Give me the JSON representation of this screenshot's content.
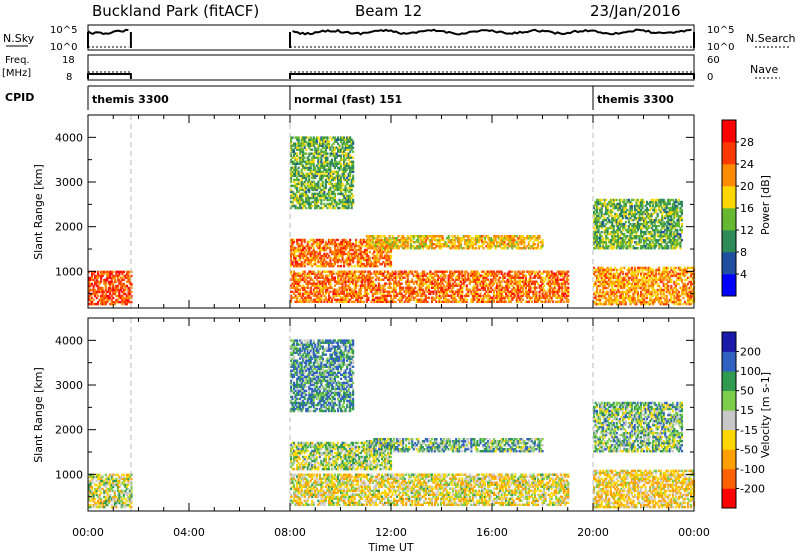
{
  "header": {
    "site": "Buckland Park (fitACF)",
    "beam": "Beam 12",
    "date": "23/Jan/2016"
  },
  "noise_panel": {
    "left_label": "N.Sky",
    "right_label": "N.Search",
    "left_ticks": [
      "10^5",
      "10^0"
    ],
    "right_ticks": [
      "10^5",
      "10^0"
    ]
  },
  "freq_panel": {
    "left_label_1": "Freq.",
    "left_label_2": "[MHz]",
    "left_ticks": [
      "18",
      "8"
    ],
    "right_label": "Nave",
    "right_ticks": [
      "60",
      "0"
    ]
  },
  "cpid_panel": {
    "label": "CPID",
    "segments": [
      {
        "label": "themis 3300",
        "start_hour": 0.0
      },
      {
        "label": "normal (fast) 151",
        "start_hour": 8.0
      },
      {
        "label": "themis 3300",
        "start_hour": 20.0
      }
    ]
  },
  "time_axis": {
    "label": "Time UT",
    "ticks": [
      "00:00",
      "04:00",
      "08:00",
      "12:00",
      "16:00",
      "20:00",
      "00:00"
    ],
    "tick_hours": [
      0,
      4,
      8,
      12,
      16,
      20,
      24
    ]
  },
  "colors": {
    "power_scale": [
      "#0000ff",
      "#1f4fa0",
      "#2e8a57",
      "#66b832",
      "#ffd700",
      "#ff8c00",
      "#ff3a00",
      "#ff0000"
    ],
    "velocity_scale": [
      "#1a1aaa",
      "#3060c0",
      "#2f9a50",
      "#7ccd4a",
      "#c8c8c8",
      "#ffd700",
      "#ffa000",
      "#ff6000",
      "#ff0000"
    ]
  },
  "chart_data": [
    {
      "type": "heatmap",
      "title": "",
      "xlabel": "",
      "ylabel": "Slant Range [km]",
      "xlim": [
        0,
        24
      ],
      "ylim": [
        180,
        4500
      ],
      "yticks": [
        "1000",
        "2000",
        "3000",
        "4000"
      ],
      "ytick_values": [
        1000,
        2000,
        3000,
        4000
      ],
      "colorbar": {
        "label": "Power [dB]",
        "ticks": [
          "4",
          "8",
          "12",
          "16",
          "20",
          "24",
          "28"
        ],
        "range": [
          0,
          30
        ]
      },
      "data_gaps_hours": [
        [
          1.7,
          8.0
        ]
      ],
      "echo_bands": [
        {
          "t0": 0.0,
          "t1": 1.7,
          "r0": 250,
          "r1": 1000,
          "power_db": 24
        },
        {
          "t0": 8.0,
          "t1": 12.0,
          "r0": 1100,
          "r1": 1700,
          "power_db": 22
        },
        {
          "t0": 11.0,
          "t1": 18.0,
          "r0": 1500,
          "r1": 1800,
          "power_db": 18
        },
        {
          "t0": 8.0,
          "t1": 19.0,
          "r0": 300,
          "r1": 1000,
          "power_db": 22
        },
        {
          "t0": 8.0,
          "t1": 10.5,
          "r0": 2400,
          "r1": 4000,
          "power_db": 12
        },
        {
          "t0": 20.0,
          "t1": 24.0,
          "r0": 250,
          "r1": 1100,
          "power_db": 20
        },
        {
          "t0": 20.0,
          "t1": 23.5,
          "r0": 1500,
          "r1": 2600,
          "power_db": 12
        }
      ]
    },
    {
      "type": "heatmap",
      "title": "",
      "xlabel": "Time UT",
      "ylabel": "Slant Range [km]",
      "xlim": [
        0,
        24
      ],
      "ylim": [
        180,
        4500
      ],
      "yticks": [
        "1000",
        "2000",
        "3000",
        "4000"
      ],
      "ytick_values": [
        1000,
        2000,
        3000,
        4000
      ],
      "colorbar": {
        "label": "Velocity [m s-1]",
        "ticks": [
          "200",
          "100",
          "50",
          "15",
          "-15",
          "-50",
          "-100",
          "-200"
        ],
        "range": [
          -250,
          250
        ]
      },
      "data_gaps_hours": [
        [
          1.7,
          8.0
        ]
      ],
      "echo_bands": [
        {
          "t0": 0.0,
          "t1": 1.7,
          "r0": 250,
          "r1": 1000,
          "velocity": -20
        },
        {
          "t0": 8.0,
          "t1": 12.0,
          "r0": 1100,
          "r1": 1700,
          "velocity": 0
        },
        {
          "t0": 11.0,
          "t1": 18.0,
          "r0": 1500,
          "r1": 1800,
          "velocity": 30
        },
        {
          "t0": 8.0,
          "t1": 19.0,
          "r0": 300,
          "r1": 1000,
          "velocity": -40
        },
        {
          "t0": 8.0,
          "t1": 10.5,
          "r0": 2400,
          "r1": 4000,
          "velocity": 60
        },
        {
          "t0": 20.0,
          "t1": 24.0,
          "r0": 250,
          "r1": 1100,
          "velocity": -60
        },
        {
          "t0": 20.0,
          "t1": 23.5,
          "r0": 1500,
          "r1": 2600,
          "velocity": 20
        }
      ]
    }
  ]
}
